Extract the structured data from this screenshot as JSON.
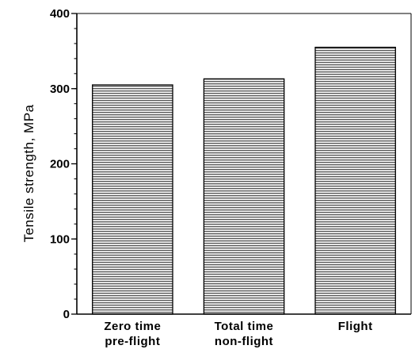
{
  "chart_data": {
    "type": "bar",
    "title": "",
    "xlabel": "",
    "ylabel": "Tensile strength, MPa",
    "ylim": [
      0,
      400
    ],
    "yticks": [
      "0",
      "100",
      "200",
      "300",
      "400"
    ],
    "categories": [
      [
        "Zero time",
        "pre-flight"
      ],
      [
        "Total time",
        "non-flight"
      ],
      [
        "Flight"
      ]
    ],
    "values": [
      305,
      313,
      355
    ],
    "grid": false,
    "bar_fill": "horizontal-hatch"
  },
  "colors": {
    "axis": "#000000",
    "hatch": "#555555",
    "background": "#ffffff"
  }
}
